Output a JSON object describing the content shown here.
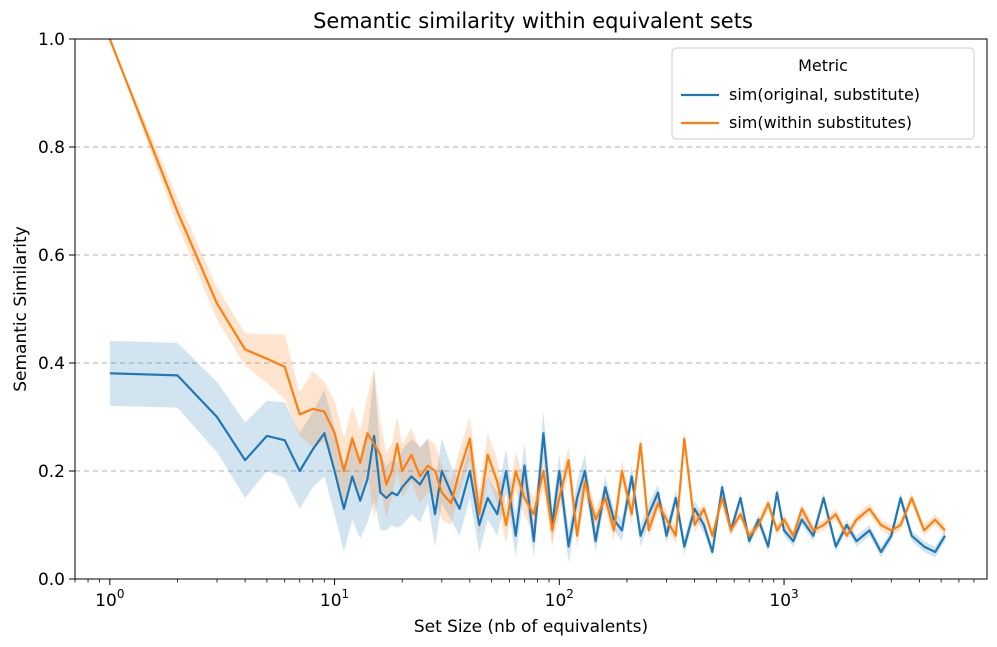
{
  "chart_data": {
    "type": "line",
    "title": "Semantic similarity within equivalent sets",
    "xlabel": "Set Size (nb of equivalents)",
    "ylabel": "Semantic Similarity",
    "xscale": "log",
    "xlim": [
      0.7,
      8000
    ],
    "ylim": [
      0.0,
      1.0
    ],
    "x_major_ticks": [
      1,
      10,
      100,
      1000
    ],
    "x_tick_labels": [
      {
        "base": "10",
        "exp": "0"
      },
      {
        "base": "10",
        "exp": "1"
      },
      {
        "base": "10",
        "exp": "2"
      },
      {
        "base": "10",
        "exp": "3"
      }
    ],
    "y_ticks": [
      0.0,
      0.2,
      0.4,
      0.6,
      0.8,
      1.0
    ],
    "y_tick_labels": [
      "0.0",
      "0.2",
      "0.4",
      "0.6",
      "0.8",
      "1.0"
    ],
    "grid": "y-dashed",
    "legend": {
      "title": "Metric",
      "placement": "top-right",
      "entries": [
        "sim(original, substitute)",
        "sim(within substitutes)"
      ]
    },
    "series": [
      {
        "name": "sim(original, substitute)",
        "color": "#1f77b4",
        "band_color": "#1f77b4",
        "x": [
          1,
          2,
          3,
          4,
          5,
          6,
          7,
          8,
          9,
          10,
          11,
          12,
          13,
          14,
          15,
          16,
          17,
          18,
          19,
          20,
          22,
          24,
          26,
          28,
          30,
          33,
          36,
          40,
          44,
          48,
          53,
          58,
          64,
          70,
          77,
          85,
          93,
          100,
          110,
          120,
          130,
          145,
          160,
          175,
          190,
          210,
          230,
          250,
          275,
          300,
          330,
          360,
          400,
          440,
          480,
          530,
          580,
          640,
          700,
          770,
          850,
          930,
          1000,
          1100,
          1200,
          1350,
          1500,
          1700,
          1900,
          2100,
          2400,
          2700,
          3000,
          3300,
          3700,
          4200,
          4700,
          5200
        ],
        "values": [
          0.381,
          0.377,
          0.3,
          0.22,
          0.265,
          0.257,
          0.2,
          0.24,
          0.27,
          0.2,
          0.13,
          0.19,
          0.145,
          0.185,
          0.265,
          0.16,
          0.15,
          0.16,
          0.155,
          0.17,
          0.19,
          0.175,
          0.2,
          0.12,
          0.2,
          0.16,
          0.13,
          0.2,
          0.1,
          0.15,
          0.12,
          0.2,
          0.08,
          0.21,
          0.07,
          0.27,
          0.1,
          0.2,
          0.06,
          0.15,
          0.2,
          0.07,
          0.17,
          0.11,
          0.09,
          0.19,
          0.08,
          0.12,
          0.16,
          0.08,
          0.15,
          0.06,
          0.13,
          0.1,
          0.05,
          0.17,
          0.09,
          0.15,
          0.07,
          0.11,
          0.06,
          0.16,
          0.09,
          0.07,
          0.11,
          0.08,
          0.15,
          0.06,
          0.1,
          0.07,
          0.09,
          0.05,
          0.08,
          0.15,
          0.08,
          0.06,
          0.05,
          0.08
        ],
        "band": [
          0.06,
          0.06,
          0.065,
          0.07,
          0.065,
          0.07,
          0.07,
          0.07,
          0.08,
          0.08,
          0.08,
          0.08,
          0.07,
          0.08,
          0.12,
          0.07,
          0.06,
          0.06,
          0.06,
          0.07,
          0.07,
          0.07,
          0.06,
          0.06,
          0.06,
          0.05,
          0.05,
          0.05,
          0.05,
          0.04,
          0.04,
          0.04,
          0.04,
          0.04,
          0.03,
          0.04,
          0.03,
          0.03,
          0.03,
          0.03,
          0.03,
          0.02,
          0.02,
          0.02,
          0.02,
          0.02,
          0.02,
          0.02,
          0.015,
          0.015,
          0.015,
          0.015,
          0.015,
          0.015,
          0.01,
          0.01,
          0.01,
          0.01,
          0.01,
          0.01,
          0.01,
          0.01,
          0.01,
          0.01,
          0.01,
          0.01,
          0.01,
          0.01,
          0.01,
          0.01,
          0.01,
          0.01,
          0.01,
          0.01,
          0.01,
          0.01,
          0.01,
          0.01
        ]
      },
      {
        "name": "sim(within substitutes)",
        "color": "#ff7f0e",
        "band_color": "#ff7f0e",
        "x": [
          1,
          2,
          3,
          4,
          5,
          6,
          7,
          8,
          9,
          10,
          11,
          12,
          13,
          14,
          15,
          16,
          17,
          18,
          19,
          20,
          22,
          24,
          26,
          28,
          30,
          33,
          36,
          40,
          44,
          48,
          53,
          58,
          64,
          70,
          77,
          85,
          93,
          100,
          110,
          120,
          130,
          145,
          160,
          175,
          190,
          210,
          230,
          250,
          275,
          300,
          330,
          360,
          400,
          440,
          480,
          530,
          580,
          640,
          700,
          770,
          850,
          930,
          1000,
          1100,
          1200,
          1350,
          1500,
          1700,
          1900,
          2100,
          2400,
          2700,
          3000,
          3300,
          3700,
          4200,
          4700,
          5200
        ],
        "values": [
          1.0,
          0.68,
          0.51,
          0.425,
          0.408,
          0.393,
          0.305,
          0.315,
          0.31,
          0.27,
          0.2,
          0.26,
          0.215,
          0.27,
          0.25,
          0.23,
          0.175,
          0.2,
          0.25,
          0.2,
          0.23,
          0.19,
          0.21,
          0.2,
          0.16,
          0.14,
          0.2,
          0.26,
          0.12,
          0.23,
          0.18,
          0.1,
          0.2,
          0.15,
          0.12,
          0.2,
          0.09,
          0.15,
          0.22,
          0.08,
          0.18,
          0.11,
          0.15,
          0.09,
          0.2,
          0.12,
          0.25,
          0.09,
          0.14,
          0.11,
          0.08,
          0.26,
          0.1,
          0.13,
          0.08,
          0.15,
          0.09,
          0.12,
          0.08,
          0.1,
          0.14,
          0.09,
          0.11,
          0.08,
          0.13,
          0.09,
          0.1,
          0.12,
          0.08,
          0.11,
          0.13,
          0.1,
          0.09,
          0.1,
          0.15,
          0.09,
          0.11,
          0.09
        ],
        "band": [
          0.0,
          0.025,
          0.03,
          0.03,
          0.045,
          0.06,
          0.04,
          0.07,
          0.055,
          0.06,
          0.06,
          0.06,
          0.06,
          0.07,
          0.14,
          0.06,
          0.06,
          0.05,
          0.05,
          0.05,
          0.05,
          0.05,
          0.05,
          0.05,
          0.05,
          0.04,
          0.04,
          0.04,
          0.04,
          0.04,
          0.04,
          0.035,
          0.035,
          0.035,
          0.03,
          0.03,
          0.03,
          0.03,
          0.025,
          0.025,
          0.025,
          0.02,
          0.02,
          0.02,
          0.02,
          0.02,
          0.015,
          0.015,
          0.015,
          0.015,
          0.015,
          0.015,
          0.015,
          0.01,
          0.01,
          0.01,
          0.01,
          0.01,
          0.01,
          0.01,
          0.01,
          0.01,
          0.01,
          0.01,
          0.01,
          0.01,
          0.01,
          0.01,
          0.01,
          0.01,
          0.01,
          0.01,
          0.01,
          0.01,
          0.01,
          0.01,
          0.01,
          0.01
        ]
      }
    ]
  }
}
